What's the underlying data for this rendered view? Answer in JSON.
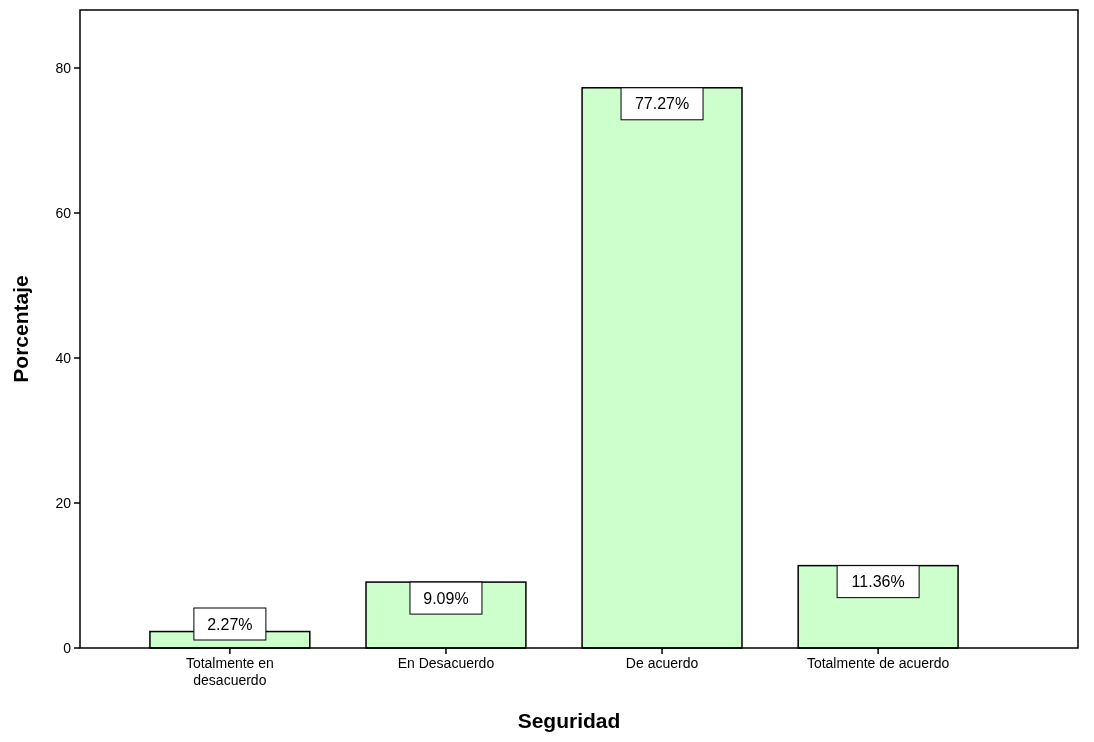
{
  "chart_data": {
    "type": "bar",
    "xlabel": "Seguridad",
    "ylabel": "Porcentaje",
    "categories": [
      "Totalmente en desacuerdo",
      "En Desacuerdo",
      "De acuerdo",
      "Totalmente de acuerdo"
    ],
    "values": [
      2.27,
      9.09,
      77.27,
      11.36
    ],
    "value_labels": [
      "2.27%",
      "9.09%",
      "77.27%",
      "11.36%"
    ],
    "color": "#ccffcc",
    "ylim": [
      0,
      88
    ],
    "yticks": [
      0,
      20,
      40,
      60,
      80
    ],
    "grid": false
  }
}
